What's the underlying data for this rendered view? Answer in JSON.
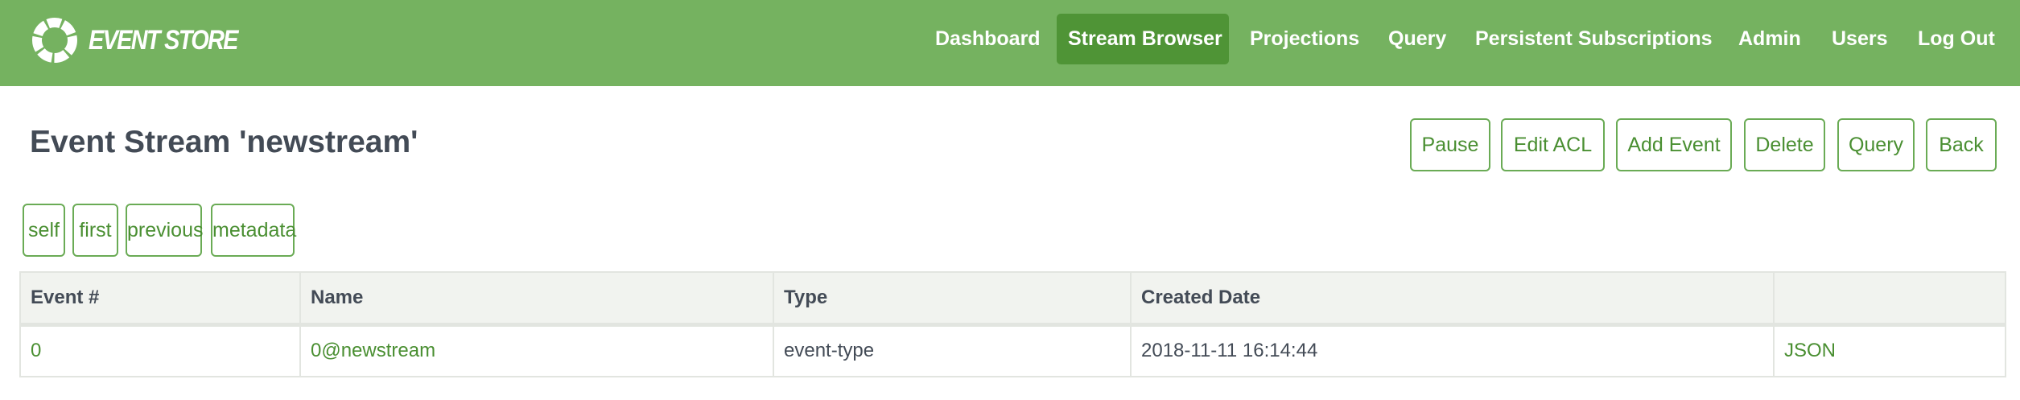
{
  "brand": {
    "name": "EVENT STORE"
  },
  "nav": {
    "items": [
      {
        "label": "Dashboard",
        "active": false
      },
      {
        "label": "Stream Browser",
        "active": true
      },
      {
        "label": "Projections",
        "active": false
      },
      {
        "label": "Query",
        "active": false
      },
      {
        "label": "Persistent Subscriptions",
        "active": false
      },
      {
        "label": "Admin",
        "active": false
      },
      {
        "label": "Users",
        "active": false
      },
      {
        "label": "Log Out",
        "active": false
      }
    ]
  },
  "page": {
    "title": "Event Stream 'newstream'"
  },
  "actions": [
    "Pause",
    "Edit ACL",
    "Add Event",
    "Delete",
    "Query",
    "Back"
  ],
  "links": [
    "self",
    "first",
    "previous",
    "metadata"
  ],
  "table": {
    "headers": [
      "Event #",
      "Name",
      "Type",
      "Created Date",
      ""
    ],
    "rows": [
      {
        "number": "0",
        "name": "0@newstream",
        "type": "event-type",
        "created": "2018-11-11 16:14:44",
        "action": "JSON"
      }
    ]
  },
  "colors": {
    "navbar": "#75b260",
    "active_nav": "#4f9436",
    "accent": "#4a8f32",
    "text": "#434b56"
  }
}
